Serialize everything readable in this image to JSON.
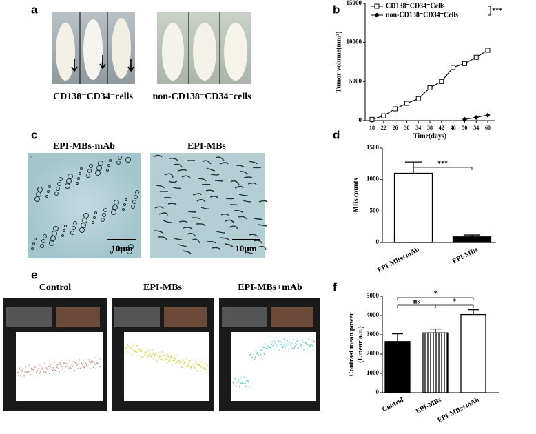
{
  "panel_labels": [
    "a",
    "b",
    "c",
    "d",
    "e",
    "f"
  ],
  "panel_a": {
    "captions": [
      "CD138⁻CD34⁻cells",
      "non-CD138⁻CD34⁻cells"
    ]
  },
  "panel_c": {
    "titles": [
      "EPI-MBs-mAb",
      "EPI-MBs"
    ],
    "scale_bars": [
      "10μm",
      "10μm"
    ]
  },
  "panel_e": {
    "titles": [
      "Control",
      "EPI-MBs",
      "EPI-MBs+mAb"
    ]
  },
  "chart_data": [
    {
      "type": "line",
      "x_label": "Time(days)",
      "y_label": "Tumor volume(mm³)",
      "categories": [
        "18",
        "22",
        "26",
        "30",
        "34",
        "38",
        "42",
        "46",
        "50",
        "54",
        "60"
      ],
      "series": [
        {
          "name": "CD138⁻CD34⁻Cells",
          "color": "#000000",
          "marker": "open-square",
          "values": [
            150,
            600,
            1500,
            2200,
            2800,
            4200,
            5000,
            6800,
            7300,
            8100,
            9000
          ]
        },
        {
          "name": "non-CD138⁻CD34⁻Cells",
          "color": "#000000",
          "marker": "filled-diamond",
          "values": [
            null,
            null,
            null,
            null,
            null,
            null,
            null,
            null,
            150,
            400,
            700
          ]
        }
      ],
      "annotations": [
        "***"
      ],
      "ylim": [
        0,
        15000
      ],
      "yticks": [
        0,
        5000,
        10000,
        15000
      ]
    },
    {
      "type": "bar",
      "y_label": "MBs counts",
      "categories": [
        "EPI-MBs+mAb",
        "EPI-MBs"
      ],
      "values": [
        1100,
        90
      ],
      "errors": [
        180,
        30
      ],
      "colors": [
        "#ffffff",
        "#000000"
      ],
      "patterns": [
        "solid",
        "solid"
      ],
      "annotations": [
        "***"
      ],
      "ylim": [
        0,
        1500
      ],
      "yticks": [
        0,
        500,
        1000,
        1500
      ]
    },
    {
      "type": "bar",
      "y_label": "Contrast mean power (Linear a.u.)",
      "categories": [
        "Control",
        "EPI-MBs",
        "EPI-MBs+mAb"
      ],
      "values": [
        2650,
        3100,
        4050
      ],
      "errors": [
        400,
        200,
        250
      ],
      "colors": [
        "#000000",
        "#ffffff",
        "#ffffff"
      ],
      "patterns": [
        "solid",
        "vertical-lines",
        "solid"
      ],
      "annotations": [
        "ns",
        "*",
        "*"
      ],
      "ylim": [
        0,
        5000
      ],
      "yticks": [
        0,
        1000,
        2000,
        3000,
        4000,
        5000
      ]
    }
  ]
}
